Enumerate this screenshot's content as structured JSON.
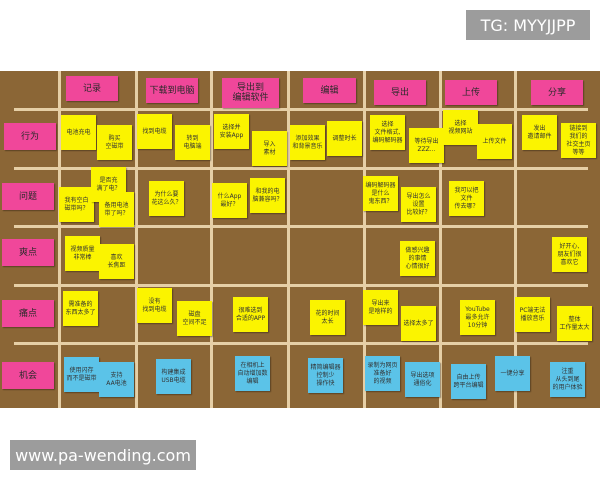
{
  "watermarks": {
    "top": "TG: MYYJJPP",
    "bottom": "www.pa-wending.com"
  },
  "colors": {
    "board": "#8b6636",
    "header": "#f0479a",
    "note": "#fbf400",
    "opportunity": "#5bc3e8"
  },
  "stages": [
    "记录",
    "下载到电脑",
    "导出到\n编辑软件",
    "编辑",
    "导出",
    "上传",
    "分享"
  ],
  "rows": [
    "行为",
    "问题",
    "爽点",
    "痛点",
    "机会"
  ],
  "notes": {
    "behavior": [
      "电池充电",
      "购买\n空磁带",
      "找到电缆",
      "转到\n电脑端",
      "选择并\n安装App",
      "导入\n素材",
      "添加效果\n和背景音乐",
      "调整时长",
      "选择\n文件格式,\n编码解码器",
      "等待导出\nZZZ...",
      "选择\n视频网站",
      "上传文件",
      "发出\n邀请邮件",
      "链接到\n我们的\n社交主页\n等等"
    ],
    "questions": [
      "我有空白\n磁带吗？",
      "是否充\n满了电？",
      "备用电池\n带了吗？",
      "为什么要\n花这么久？",
      "什么App\n最好？",
      "和我的电\n脑兼容吗？",
      "编码解码器\n是什么\n鬼东西？",
      "导出怎么\n设置\n比较好？",
      "我可以把\n文件\n传去哪？"
    ],
    "delights": [
      "视频质量\n非常棒",
      "喜欢\n长焦距",
      "做感兴趣\n的事情\n心情很好",
      "好开心,\n朋友们很\n喜欢它"
    ],
    "pains": [
      "需准备的\n东西太多了",
      "没有\n找到电缆",
      "磁盘\n空间不足",
      "很难选到\n合适的APP",
      "花的时间\n太长",
      "导出来\n是啥样的",
      "选择太多了",
      "YouTube\n最多允许\n10分钟",
      "PC端无法\n播放音乐",
      "整体\n工作量太大"
    ],
    "opportunities": [
      "使用闪存\n而不是磁带",
      "支持\nAA电池",
      "构建集成\nUSB电缆",
      "在相机上\n自动增加数\n编辑",
      "精简编辑器\n控制少\n操作快",
      "录制为网页\n准备好\n的视频",
      "导出选项\n通俗化",
      "自由上传\n跨平台编辑",
      "一键分享",
      "注重\n从头到尾\n的用户体验"
    ]
  }
}
